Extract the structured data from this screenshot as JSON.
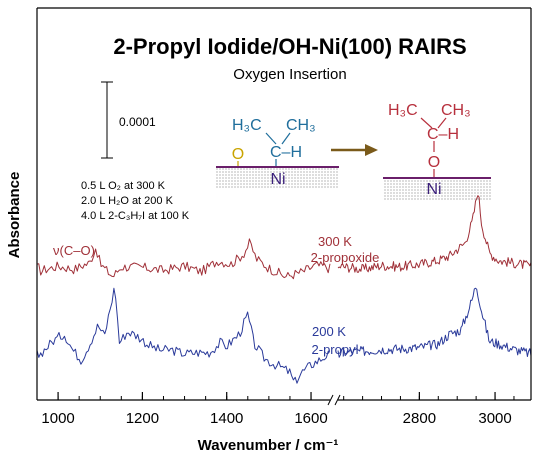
{
  "chart_data": {
    "type": "line",
    "title": "2-Propyl Iodide/OH-Ni(100) RAIRS",
    "subtitle": "Oxygen Insertion",
    "xlabel": "Wavenumber / cm⁻¹",
    "ylabel": "Absorbance",
    "x_ticks": [
      "1000",
      "1200",
      "1400",
      "1600",
      "2800",
      "3000"
    ],
    "x_segments": [
      {
        "xlim": [
          950,
          1645
        ]
      },
      {
        "xlim": [
          2585,
          3095
        ]
      }
    ],
    "axis_break": "between 1645 and 2585",
    "scale_bar": {
      "label": "0.0001",
      "value": 0.0001
    },
    "conditions": [
      "0.5 L O₂ at 300 K",
      "2.0 L H₂O at 200 K",
      "4.0 L 2-C₃H₇I at 100 K"
    ],
    "annotations": [
      {
        "text": "ν(C–O)",
        "x": 1090,
        "series": "300 K 2-propoxide"
      }
    ],
    "series": [
      {
        "name": "300 K 2-propoxide",
        "temperature": "300 K",
        "species": "2-propoxide",
        "color": "#a03038",
        "points": [
          [
            955,
            -0.5
          ],
          [
            1000,
            0.3
          ],
          [
            1040,
            -0.2
          ],
          [
            1060,
            0.5
          ],
          [
            1075,
            0.8
          ],
          [
            1090,
            3.4
          ],
          [
            1100,
            0.6
          ],
          [
            1130,
            -1.4
          ],
          [
            1150,
            0.2
          ],
          [
            1200,
            0.1
          ],
          [
            1250,
            -0.4
          ],
          [
            1300,
            0.3
          ],
          [
            1340,
            -0.6
          ],
          [
            1380,
            1.2
          ],
          [
            1410,
            0.6
          ],
          [
            1440,
            2.3
          ],
          [
            1455,
            4.1
          ],
          [
            1470,
            1.5
          ],
          [
            1500,
            0.0
          ],
          [
            1540,
            -1.4
          ],
          [
            1580,
            -0.6
          ],
          [
            1610,
            0.4
          ],
          [
            1640,
            0.2
          ],
          [
            2590,
            0.3
          ],
          [
            2650,
            -0.2
          ],
          [
            2700,
            0.4
          ],
          [
            2750,
            0.2
          ],
          [
            2800,
            0.6
          ],
          [
            2850,
            1.2
          ],
          [
            2880,
            2.0
          ],
          [
            2920,
            4.0
          ],
          [
            2940,
            7.5
          ],
          [
            2955,
            12.5
          ],
          [
            2965,
            7.0
          ],
          [
            2985,
            2.4
          ],
          [
            3010,
            1.2
          ],
          [
            3050,
            0.8
          ],
          [
            3095,
            0.3
          ]
        ],
        "peaks_cm-1": [
          1090,
          1455,
          2955
        ]
      },
      {
        "name": "200 K 2-propyl",
        "temperature": "200 K",
        "species": "2-propyl",
        "color": "#2a3a9a",
        "points": [
          [
            955,
            0.0
          ],
          [
            990,
            2.4
          ],
          [
            1015,
            3.4
          ],
          [
            1035,
            0.8
          ],
          [
            1055,
            -0.8
          ],
          [
            1075,
            1.8
          ],
          [
            1095,
            4.8
          ],
          [
            1110,
            3.0
          ],
          [
            1125,
            8.0
          ],
          [
            1135,
            11.2
          ],
          [
            1145,
            2.0
          ],
          [
            1165,
            3.8
          ],
          [
            1190,
            3.0
          ],
          [
            1215,
            1.6
          ],
          [
            1240,
            0.8
          ],
          [
            1270,
            0.8
          ],
          [
            1300,
            0.2
          ],
          [
            1330,
            0.4
          ],
          [
            1360,
            0.4
          ],
          [
            1385,
            2.0
          ],
          [
            1400,
            1.4
          ],
          [
            1430,
            3.4
          ],
          [
            1450,
            6.5
          ],
          [
            1465,
            1.8
          ],
          [
            1490,
            -0.6
          ],
          [
            1510,
            -1.4
          ],
          [
            1530,
            -2.0
          ],
          [
            1550,
            -2.8
          ],
          [
            1560,
            -4.6
          ],
          [
            1575,
            -3.0
          ],
          [
            1600,
            -1.6
          ],
          [
            1625,
            -0.6
          ],
          [
            1640,
            0.1
          ],
          [
            2590,
            0.4
          ],
          [
            2650,
            0.6
          ],
          [
            2700,
            0.9
          ],
          [
            2750,
            1.0
          ],
          [
            2800,
            1.2
          ],
          [
            2850,
            1.8
          ],
          [
            2880,
            3.4
          ],
          [
            2910,
            4.0
          ],
          [
            2940,
            9.0
          ],
          [
            2950,
            11.5
          ],
          [
            2965,
            7.0
          ],
          [
            2985,
            2.2
          ],
          [
            3010,
            1.8
          ],
          [
            3050,
            0.9
          ],
          [
            3095,
            0.2
          ]
        ],
        "peaks_cm-1": [
          1135,
          1450,
          2950
        ]
      }
    ],
    "grid": false,
    "legend": "none"
  },
  "schematic": {
    "reactant": {
      "top_left": "H₃C",
      "top_right": "CH₃",
      "middle": "C–H",
      "adsorbed_o": "O",
      "surface": "Ni"
    },
    "product": {
      "top_left": "H₃C",
      "top_right": "CH₃",
      "middle": "C–H",
      "oxygen": "O",
      "surface": "Ni"
    },
    "colors": {
      "reactant_alkyl": "#1f6e9c",
      "oxygen": "#c9a400",
      "product": "#b7303d",
      "surface_line": "#6a1f6a",
      "arrow": "#7a5a1a",
      "surface_text": "#3a1f7a"
    }
  }
}
